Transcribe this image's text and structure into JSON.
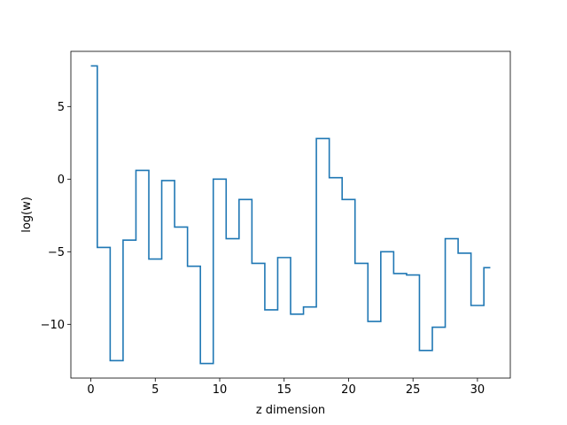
{
  "chart_data": {
    "type": "line",
    "drawstyle": "steps-mid",
    "title": "",
    "xlabel": "z dimension",
    "ylabel": "log(w)",
    "xlim": [
      -1.55,
      32.55
    ],
    "ylim": [
      -13.7,
      8.8
    ],
    "xticks": [
      0,
      5,
      10,
      15,
      20,
      25,
      30
    ],
    "xtick_labels": [
      "0",
      "5",
      "10",
      "15",
      "20",
      "25",
      "30"
    ],
    "yticks": [
      5,
      0,
      -5,
      -10
    ],
    "ytick_labels": [
      "5",
      "0",
      "−5",
      "−10"
    ],
    "grid": false,
    "legend": "none",
    "series": [
      {
        "color": "#1f77b4",
        "x": [
          0,
          1,
          2,
          3,
          4,
          5,
          6,
          7,
          8,
          9,
          10,
          11,
          12,
          13,
          14,
          15,
          16,
          17,
          18,
          19,
          20,
          21,
          22,
          23,
          24,
          25,
          26,
          27,
          28,
          29,
          30,
          31
        ],
        "values": [
          7.8,
          -4.7,
          -12.5,
          -4.2,
          0.6,
          -5.5,
          -0.1,
          -3.3,
          -6.0,
          -12.7,
          0.0,
          -4.1,
          -1.4,
          -5.8,
          -9.0,
          -5.4,
          -9.3,
          -8.8,
          2.8,
          0.1,
          -1.4,
          -5.8,
          -9.8,
          -5.0,
          -6.5,
          -6.6,
          -11.8,
          -10.2,
          -4.1,
          -5.1,
          -8.7,
          -6.1
        ]
      }
    ]
  }
}
